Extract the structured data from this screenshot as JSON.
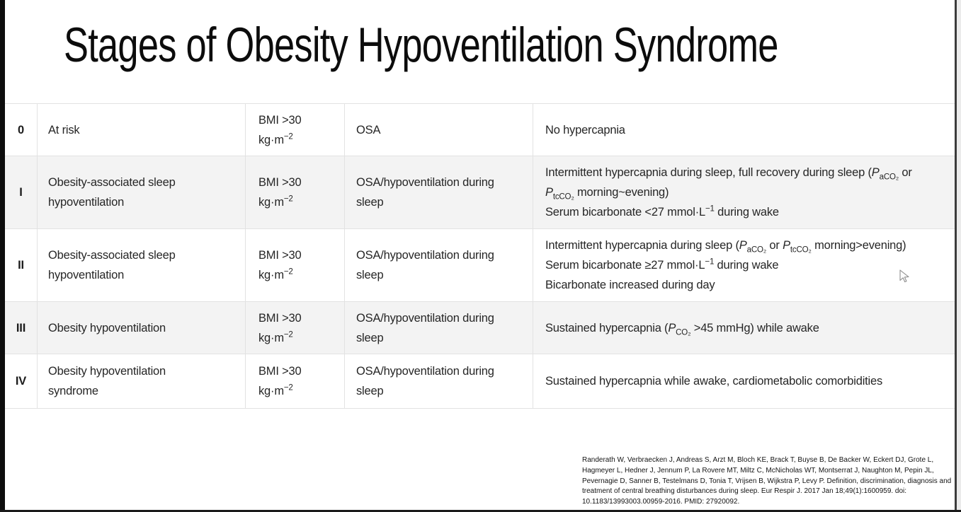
{
  "slide": {
    "title": "Stages of Obesity Hypoventilation Syndrome"
  },
  "table": {
    "rows": [
      {
        "stage": "0",
        "description": [
          {
            "t": "At risk"
          }
        ],
        "bmi": [
          {
            "t": "BMI >30"
          },
          {
            "br": true
          },
          {
            "t": "kg·m"
          },
          {
            "sup": "−2"
          }
        ],
        "osa": [
          {
            "t": "OSA"
          }
        ],
        "details": [
          {
            "t": "No hypercapnia"
          }
        ]
      },
      {
        "stage": "I",
        "description": [
          {
            "t": "Obesity-associated sleep"
          },
          {
            "br": true
          },
          {
            "t": "hypoventilation"
          }
        ],
        "bmi": [
          {
            "t": "BMI >30"
          },
          {
            "br": true
          },
          {
            "t": "kg·m"
          },
          {
            "sup": "−2"
          }
        ],
        "osa": [
          {
            "t": "OSA/hypoventilation during"
          },
          {
            "br": true
          },
          {
            "t": "sleep"
          }
        ],
        "details": [
          {
            "t": "Intermittent hypercapnia during sleep, full recovery during sleep ("
          },
          {
            "i": "P"
          },
          {
            "sub": "aCO₂"
          },
          {
            "t": " or"
          },
          {
            "br": true
          },
          {
            "i": "P"
          },
          {
            "sub": "tcCO₂"
          },
          {
            "t": " morning~evening)"
          },
          {
            "br": true
          },
          {
            "t": "Serum bicarbonate <27 mmol·L"
          },
          {
            "sup": "−1"
          },
          {
            "t": " during wake"
          }
        ]
      },
      {
        "stage": "II",
        "description": [
          {
            "t": "Obesity-associated sleep"
          },
          {
            "br": true
          },
          {
            "t": "hypoventilation"
          }
        ],
        "bmi": [
          {
            "t": "BMI >30"
          },
          {
            "br": true
          },
          {
            "t": "kg·m"
          },
          {
            "sup": "−2"
          }
        ],
        "osa": [
          {
            "t": "OSA/hypoventilation during"
          },
          {
            "br": true
          },
          {
            "t": "sleep"
          }
        ],
        "details": [
          {
            "t": "Intermittent hypercapnia during sleep ("
          },
          {
            "i": "P"
          },
          {
            "sub": "aCO₂"
          },
          {
            "t": " or "
          },
          {
            "i": "P"
          },
          {
            "sub": "tcCO₂"
          },
          {
            "t": " morning>evening)"
          },
          {
            "br": true
          },
          {
            "t": "Serum bicarbonate ≥27 mmol·L"
          },
          {
            "sup": "−1"
          },
          {
            "t": " during wake"
          },
          {
            "br": true
          },
          {
            "t": "Bicarbonate increased during day"
          }
        ]
      },
      {
        "stage": "III",
        "description": [
          {
            "t": "Obesity hypoventilation"
          }
        ],
        "bmi": [
          {
            "t": "BMI >30"
          },
          {
            "br": true
          },
          {
            "t": "kg·m"
          },
          {
            "sup": "−2"
          }
        ],
        "osa": [
          {
            "t": "OSA/hypoventilation during"
          },
          {
            "br": true
          },
          {
            "t": "sleep"
          }
        ],
        "details": [
          {
            "t": "Sustained hypercapnia ("
          },
          {
            "i": "P"
          },
          {
            "sub": "CO₂"
          },
          {
            "t": " >45 mmHg) while awake"
          }
        ]
      },
      {
        "stage": "IV",
        "description": [
          {
            "t": "Obesity hypoventilation"
          },
          {
            "br": true
          },
          {
            "t": "syndrome"
          }
        ],
        "bmi": [
          {
            "t": "BMI >30"
          },
          {
            "br": true
          },
          {
            "t": "kg·m"
          },
          {
            "sup": "−2"
          }
        ],
        "osa": [
          {
            "t": "OSA/hypoventilation during"
          },
          {
            "br": true
          },
          {
            "t": "sleep"
          }
        ],
        "details": [
          {
            "t": "Sustained hypercapnia while awake, cardiometabolic comorbidities"
          }
        ]
      }
    ]
  },
  "citation": "Randerath W, Verbraecken J, Andreas S, Arzt M, Bloch KE, Brack T, Buyse B, De Backer W, Eckert DJ, Grote L, Hagmeyer L, Hedner J, Jennum P, La Rovere MT, Miltz C, McNicholas WT, Montserrat J, Naughton M, Pepin JL, Pevernagie D, Sanner B, Testelmans D, Tonia T, Vrijsen B, Wijkstra P, Levy P. Definition, discrimination, diagnosis and treatment of central breathing disturbances during sleep. Eur Respir J. 2017 Jan 18;49(1):1600959. doi: 10.1183/13993003.00959-2016. PMID: 27920092.",
  "icons": {
    "cursor": "mouse-pointer"
  },
  "colors": {
    "row_shade": "#f3f3f3",
    "border": "#e2e2e2",
    "title_color": "#0c0c0c",
    "text_color": "#262626"
  }
}
